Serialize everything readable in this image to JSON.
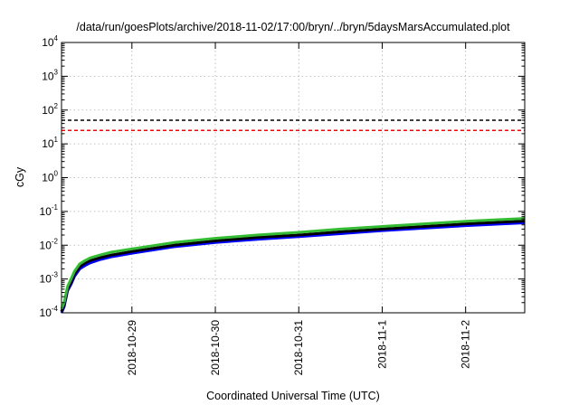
{
  "chart_data": {
    "type": "line",
    "title": "/data/run/goesPlots/archive/2018-11-02/17:00/bryn/../bryn/5daysMarsAccumulated.plot",
    "xlabel": "Coordinated Universal Time (UTC)",
    "ylabel": "cGy",
    "yscale": "log",
    "xlim": [
      "2018-10-28T03:45",
      "2018-11-02T17:00"
    ],
    "ylim": [
      0.0001,
      10000
    ],
    "grid": true,
    "legend": "none",
    "x_ticks": [
      "2018-10-29",
      "2018-10-30",
      "2018-10-31",
      "2018-11-1",
      "2018-11-2"
    ],
    "x_tick_positions": [
      "2018-10-29T00:00",
      "2018-10-30T00:00",
      "2018-10-31T00:00",
      "2018-11-01T00:00",
      "2018-11-02T00:00"
    ],
    "y_ticks": [
      {
        "base": "10",
        "exp": "-4",
        "value": 0.0001
      },
      {
        "base": "10",
        "exp": "-3",
        "value": 0.001
      },
      {
        "base": "10",
        "exp": "-2",
        "value": 0.01
      },
      {
        "base": "10",
        "exp": "-1",
        "value": 0.1
      },
      {
        "base": "10",
        "exp": "0",
        "value": 1
      },
      {
        "base": "10",
        "exp": "1",
        "value": 10
      },
      {
        "base": "10",
        "exp": "2",
        "value": 100
      },
      {
        "base": "10",
        "exp": "3",
        "value": 1000
      },
      {
        "base": "10",
        "exp": "4",
        "value": 10000
      }
    ],
    "reference_lines": [
      {
        "value": 50,
        "color": "#000000",
        "style": "dashed"
      },
      {
        "value": 25,
        "color": "#ff0000",
        "style": "dashed"
      }
    ],
    "series": [
      {
        "color": "#0000ff",
        "x": [
          "2018-10-28T03:45",
          "2018-10-28T04:30",
          "2018-10-28T05:30",
          "2018-10-28T06:30",
          "2018-10-28T07:30",
          "2018-10-28T09:00",
          "2018-10-28T10:30",
          "2018-10-28T12:00",
          "2018-10-28T15:00",
          "2018-10-28T18:00",
          "2018-10-29T00:00",
          "2018-10-29T12:00",
          "2018-10-30T00:00",
          "2018-10-30T12:00",
          "2018-10-31T00:00",
          "2018-10-31T12:00",
          "2018-11-01T00:00",
          "2018-11-01T12:00",
          "2018-11-02T00:00",
          "2018-11-02T17:00"
        ],
        "y": [
          0.0001,
          0.00015,
          0.00045,
          0.0007,
          0.0012,
          0.002,
          0.0025,
          0.003,
          0.0038,
          0.0045,
          0.0058,
          0.009,
          0.012,
          0.015,
          0.018,
          0.022,
          0.027,
          0.032,
          0.038,
          0.046
        ]
      },
      {
        "color": "#000000",
        "x": [
          "2018-10-28T03:45",
          "2018-10-28T04:30",
          "2018-10-28T05:30",
          "2018-10-28T06:30",
          "2018-10-28T07:30",
          "2018-10-28T09:00",
          "2018-10-28T10:30",
          "2018-10-28T12:00",
          "2018-10-28T15:00",
          "2018-10-28T18:00",
          "2018-10-29T00:00",
          "2018-10-29T12:00",
          "2018-10-30T00:00",
          "2018-10-30T12:00",
          "2018-10-31T00:00",
          "2018-10-31T12:00",
          "2018-11-01T00:00",
          "2018-11-01T12:00",
          "2018-11-02T00:00",
          "2018-11-02T17:00"
        ],
        "y": [
          0.00011,
          0.00017,
          0.0005,
          0.0008,
          0.0014,
          0.0023,
          0.0029,
          0.0035,
          0.0043,
          0.0051,
          0.0065,
          0.01,
          0.0135,
          0.017,
          0.02,
          0.025,
          0.03,
          0.036,
          0.043,
          0.052
        ]
      },
      {
        "color": "#33bb33",
        "x": [
          "2018-10-28T03:45",
          "2018-10-28T04:30",
          "2018-10-28T05:30",
          "2018-10-28T06:30",
          "2018-10-28T07:30",
          "2018-10-28T09:00",
          "2018-10-28T10:30",
          "2018-10-28T12:00",
          "2018-10-28T15:00",
          "2018-10-28T18:00",
          "2018-10-29T00:00",
          "2018-10-29T12:00",
          "2018-10-30T00:00",
          "2018-10-30T12:00",
          "2018-10-31T00:00",
          "2018-10-31T12:00",
          "2018-11-01T00:00",
          "2018-11-01T12:00",
          "2018-11-02T00:00",
          "2018-11-02T17:00"
        ],
        "y": [
          0.00013,
          0.0002,
          0.0006,
          0.001,
          0.0017,
          0.0028,
          0.0035,
          0.0042,
          0.0052,
          0.0062,
          0.0078,
          0.012,
          0.016,
          0.02,
          0.024,
          0.03,
          0.036,
          0.043,
          0.051,
          0.062
        ]
      }
    ]
  }
}
